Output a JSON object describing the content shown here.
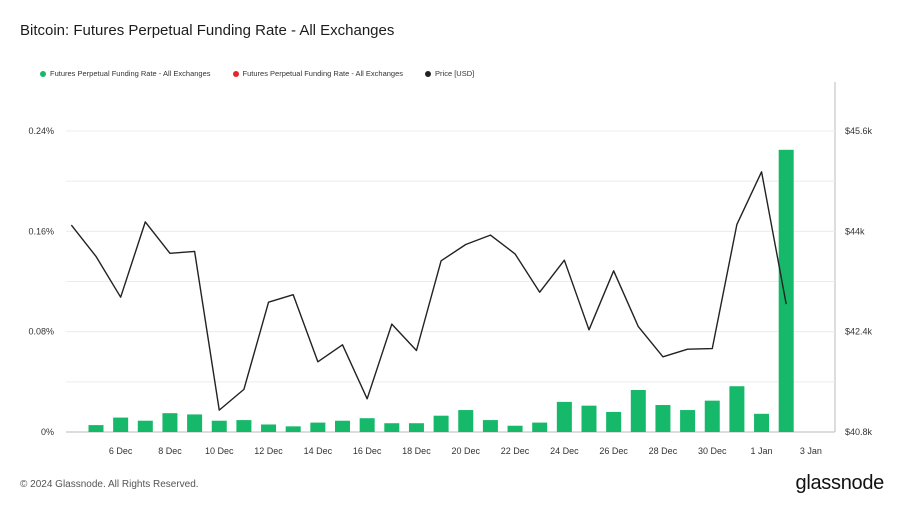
{
  "chart": {
    "title": "Bitcoin: Futures Perpetual Funding Rate - All Exchanges"
  },
  "legend": [
    {
      "label": "Futures Perpetual Funding Rate - All Exchanges",
      "color": "#16b86a"
    },
    {
      "label": "Futures Perpetual Funding Rate - All Exchanges",
      "color": "#e5262b"
    },
    {
      "label": "Price [USD]",
      "color": "#222222"
    }
  ],
  "footer": {
    "copyright": "© 2024 Glassnode. All Rights Reserved.",
    "brand": "glassnode"
  },
  "chart_data": {
    "type": "bar+line",
    "title": "Bitcoin: Futures Perpetual Funding Rate - All Exchanges",
    "x_tick_labels": [
      "6 Dec",
      "8 Dec",
      "10 Dec",
      "12 Dec",
      "14 Dec",
      "16 Dec",
      "18 Dec",
      "20 Dec",
      "22 Dec",
      "24 Dec",
      "26 Dec",
      "28 Dec",
      "30 Dec",
      "1 Jan",
      "3 Jan"
    ],
    "x_dates": [
      "5 Dec",
      "6 Dec",
      "7 Dec",
      "8 Dec",
      "9 Dec",
      "10 Dec",
      "11 Dec",
      "12 Dec",
      "13 Dec",
      "14 Dec",
      "15 Dec",
      "16 Dec",
      "17 Dec",
      "18 Dec",
      "19 Dec",
      "20 Dec",
      "21 Dec",
      "22 Dec",
      "23 Dec",
      "24 Dec",
      "25 Dec",
      "26 Dec",
      "27 Dec",
      "28 Dec",
      "29 Dec",
      "30 Dec",
      "31 Dec",
      "1 Jan",
      "2 Jan",
      "3 Jan"
    ],
    "y_left": {
      "ticks": [
        "0%",
        "0.08%",
        "0.16%",
        "0.24%"
      ],
      "values": [
        0,
        0.08,
        0.16,
        0.24
      ],
      "range": [
        0,
        0.24
      ]
    },
    "y_right": {
      "ticks": [
        "$40.8k",
        "$42.4k",
        "$44k",
        "$45.6k"
      ],
      "values": [
        40800,
        42400,
        44000,
        45600
      ],
      "range": [
        40800,
        45600
      ]
    },
    "grid": true,
    "legend_position": "top-left",
    "series": [
      {
        "name": "Futures Perpetual Funding Rate - All Exchanges",
        "type": "bar",
        "color": "#16b86a",
        "axis": "left",
        "unit": "%",
        "values": [
          0.0055,
          0.0115,
          0.009,
          0.015,
          0.014,
          0.009,
          0.0095,
          0.006,
          0.0045,
          0.0075,
          0.009,
          0.011,
          0.007,
          0.007,
          0.013,
          0.0175,
          0.0095,
          0.005,
          0.0075,
          0.024,
          0.021,
          0.016,
          0.0335,
          0.0215,
          0.0175,
          0.025,
          0.0365,
          0.0145,
          0.225,
          null
        ]
      },
      {
        "name": "Price [USD]",
        "type": "line",
        "color": "#222222",
        "axis": "right",
        "unit": "USD",
        "values": [
          44100,
          43600,
          42950,
          44150,
          43650,
          43680,
          41150,
          41480,
          42870,
          42990,
          41920,
          42190,
          41330,
          42520,
          42100,
          43530,
          43790,
          43940,
          43640,
          43030,
          43540,
          42430,
          43370,
          42480,
          42000,
          42120,
          42130,
          44110,
          44950,
          42840
        ]
      }
    ]
  }
}
